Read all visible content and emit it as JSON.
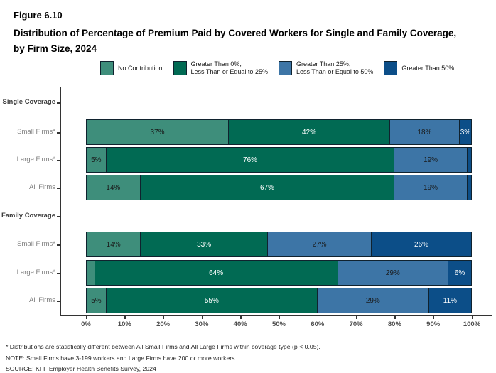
{
  "figure_label": "Figure 6.10",
  "title": "Distribution of Percentage of Premium Paid by Covered Workers for Single and Family Coverage, by Firm Size, 2024",
  "colors": {
    "no_contribution": "#3E8E7B",
    "gt0_le25": "#016A53",
    "gt25_le50": "#3D75A6",
    "gt50": "#0C4E88",
    "segment_border": "#10222e",
    "axis": "#333333"
  },
  "legend": [
    {
      "label": "No Contribution",
      "color": "#3E8E7B"
    },
    {
      "label": "Greater Than 0%,\nLess Than or Equal to 25%",
      "color": "#016A53"
    },
    {
      "label": "Greater Than 25%,\nLess Than or Equal to 50%",
      "color": "#3D75A6"
    },
    {
      "label": "Greater Than 50%",
      "color": "#0C4E88"
    }
  ],
  "chart_data": {
    "type": "bar",
    "orientation": "horizontal_stacked",
    "title": "Distribution of Percentage of Premium Paid by Covered Workers for Single and Family Coverage, by Firm Size, 2024",
    "xlabel": "",
    "ylabel": "",
    "xlim": [
      0,
      100
    ],
    "grid": false,
    "legend_position": "top",
    "x_ticks": [
      "0%",
      "10%",
      "20%",
      "30%",
      "40%",
      "50%",
      "60%",
      "70%",
      "80%",
      "90%",
      "100%"
    ],
    "series_names": [
      "No Contribution",
      "Greater Than 0%, Less Than or Equal to 25%",
      "Greater Than 25%, Less Than or Equal to 50%",
      "Greater Than 50%"
    ],
    "groups": [
      {
        "label": "Single Coverage",
        "rows": [
          {
            "label": "Small Firms*",
            "segments": [
              {
                "v": 37,
                "t": "37%",
                "s": 0
              },
              {
                "v": 42,
                "t": "42%",
                "s": 1
              },
              {
                "v": 18,
                "t": "18%",
                "s": 2
              },
              {
                "v": 3,
                "t": "3%",
                "s": 3
              }
            ]
          },
          {
            "label": "Large Firms*",
            "segments": [
              {
                "v": 5,
                "t": "5%",
                "s": 0
              },
              {
                "v": 76,
                "t": "76%",
                "s": 1
              },
              {
                "v": 19,
                "t": "19%",
                "s": 2
              },
              {
                "v": 1,
                "t": "",
                "s": 3
              }
            ]
          },
          {
            "label": "All Firms",
            "segments": [
              {
                "v": 14,
                "t": "14%",
                "s": 0
              },
              {
                "v": 67,
                "t": "67%",
                "s": 1
              },
              {
                "v": 19,
                "t": "19%",
                "s": 2
              },
              {
                "v": 1,
                "t": "",
                "s": 3
              }
            ]
          }
        ]
      },
      {
        "label": "Family Coverage",
        "rows": [
          {
            "label": "Small Firms*",
            "segments": [
              {
                "v": 14,
                "t": "14%",
                "s": 0
              },
              {
                "v": 33,
                "t": "33%",
                "s": 1
              },
              {
                "v": 27,
                "t": "27%",
                "s": 2
              },
              {
                "v": 26,
                "t": "26%",
                "s": 3
              }
            ]
          },
          {
            "label": "Large Firms*",
            "segments": [
              {
                "v": 2,
                "t": "",
                "s": 0
              },
              {
                "v": 64,
                "t": "64%",
                "s": 1
              },
              {
                "v": 29,
                "t": "29%",
                "s": 2
              },
              {
                "v": 6,
                "t": "6%",
                "s": 3
              }
            ]
          },
          {
            "label": "All Firms",
            "segments": [
              {
                "v": 5,
                "t": "5%",
                "s": 0
              },
              {
                "v": 55,
                "t": "55%",
                "s": 1
              },
              {
                "v": 29,
                "t": "29%",
                "s": 2
              },
              {
                "v": 11,
                "t": "11%",
                "s": 3
              }
            ]
          }
        ]
      }
    ]
  },
  "footnotes": [
    "* Distributions are statistically different between All Small Firms and All Large Firms within coverage type (p < 0.05).",
    "NOTE: Small Firms have 3-199 workers and Large Firms have 200 or more workers.",
    "SOURCE: KFF Employer Health Benefits Survey, 2024"
  ]
}
